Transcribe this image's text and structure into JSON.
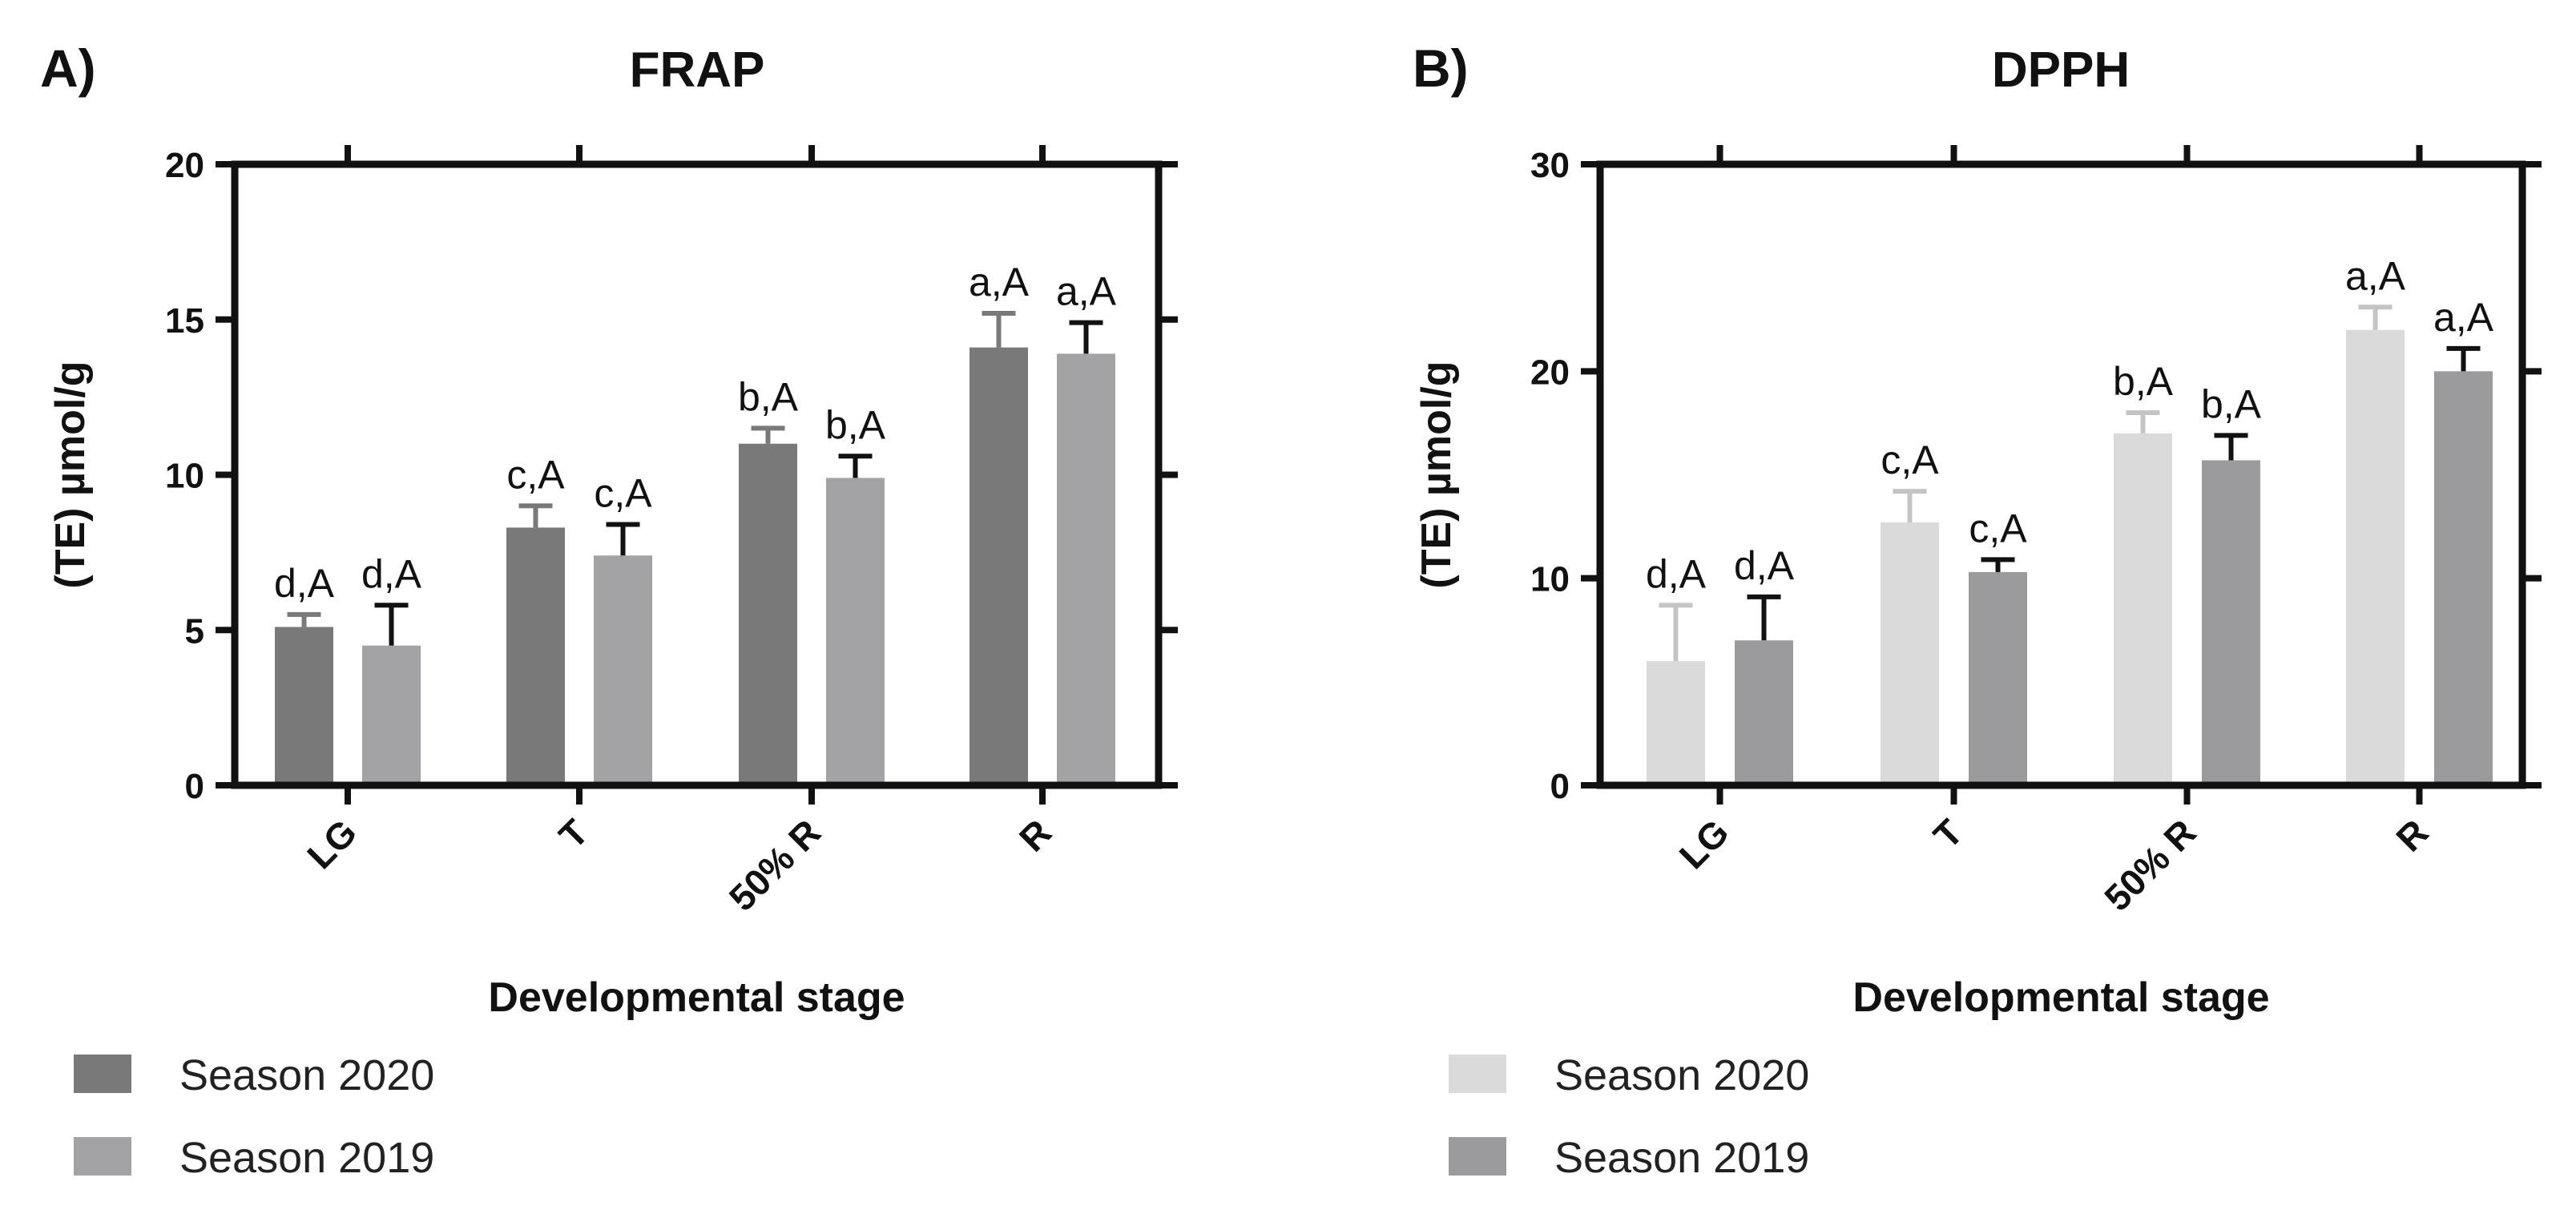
{
  "chart_data": [
    {
      "type": "bar",
      "panel_letter": "A)",
      "title": "FRAP",
      "xlabel": "Developmental stage",
      "ylabel": "(TE) µmol/g",
      "ylim": [
        0,
        20
      ],
      "yticks": [
        "0",
        "5",
        "10",
        "15",
        "20"
      ],
      "categories": [
        "LG",
        "T",
        "50% R",
        "R"
      ],
      "series": [
        {
          "name": "Season 2020",
          "color": "#797979",
          "error_color": "#797979",
          "values": [
            5.1,
            8.3,
            11.0,
            14.1
          ],
          "errors": [
            0.4,
            0.7,
            0.5,
            1.1
          ],
          "labels": [
            "d,A",
            "c,A",
            "b,A",
            "a,A"
          ]
        },
        {
          "name": "Season 2019",
          "color": "#a3a3a5",
          "error_color": "#111111",
          "values": [
            4.5,
            7.4,
            9.9,
            13.9
          ],
          "errors": [
            1.3,
            1.0,
            0.7,
            1.0
          ],
          "labels": [
            "d,A",
            "c,A",
            "b,A",
            "a,A"
          ]
        }
      ]
    },
    {
      "type": "bar",
      "panel_letter": "B)",
      "title": "DPPH",
      "xlabel": "Developmental stage",
      "ylabel": "(TE) µmol/g",
      "ylim": [
        0,
        30
      ],
      "yticks": [
        "0",
        "10",
        "20",
        "30"
      ],
      "categories": [
        "LG",
        "T",
        "50% R",
        "R"
      ],
      "series": [
        {
          "name": "Season 2020",
          "color": "#dadada",
          "error_color": "#c4c4c4",
          "values": [
            6.0,
            12.7,
            17.0,
            22.0
          ],
          "errors": [
            2.7,
            1.5,
            1.0,
            1.1
          ],
          "labels": [
            "d,A",
            "c,A",
            "b,A",
            "a,A"
          ]
        },
        {
          "name": "Season 2019",
          "color": "#9b9b9d",
          "error_color": "#111111",
          "values": [
            7.0,
            10.3,
            15.7,
            20.0
          ],
          "errors": [
            2.1,
            0.6,
            1.2,
            1.1
          ],
          "labels": [
            "d,A",
            "c,A",
            "b,A",
            "a,A"
          ]
        }
      ]
    }
  ]
}
